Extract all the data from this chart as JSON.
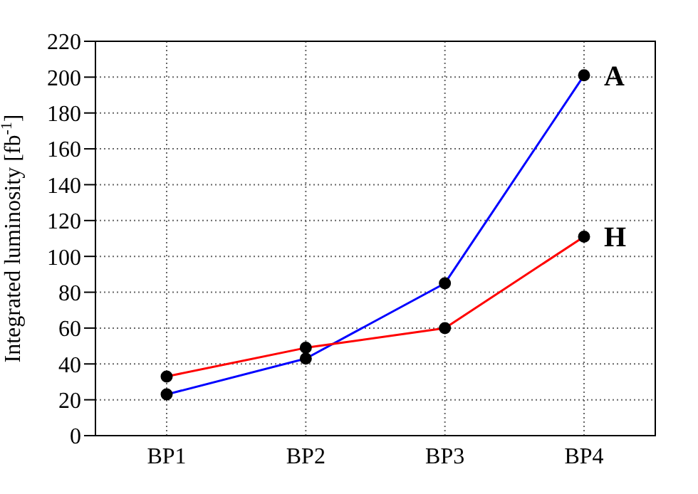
{
  "chart_data": {
    "type": "line",
    "ylabel": "Integrated luminosity [fb$^{-1}$]",
    "categories": [
      "BP1",
      "BP2",
      "BP3",
      "BP4"
    ],
    "series": [
      {
        "name": "A",
        "color": "#0000ff",
        "values": [
          23,
          43,
          85,
          201
        ]
      },
      {
        "name": "H",
        "color": "#ff0000",
        "values": [
          33,
          49,
          60,
          111
        ]
      }
    ],
    "ylim": [
      0,
      220
    ],
    "yticks": [
      0,
      20,
      40,
      60,
      80,
      100,
      120,
      140,
      160,
      180,
      200,
      220
    ],
    "grid": true,
    "marker": "circle",
    "line_style": "solid"
  }
}
